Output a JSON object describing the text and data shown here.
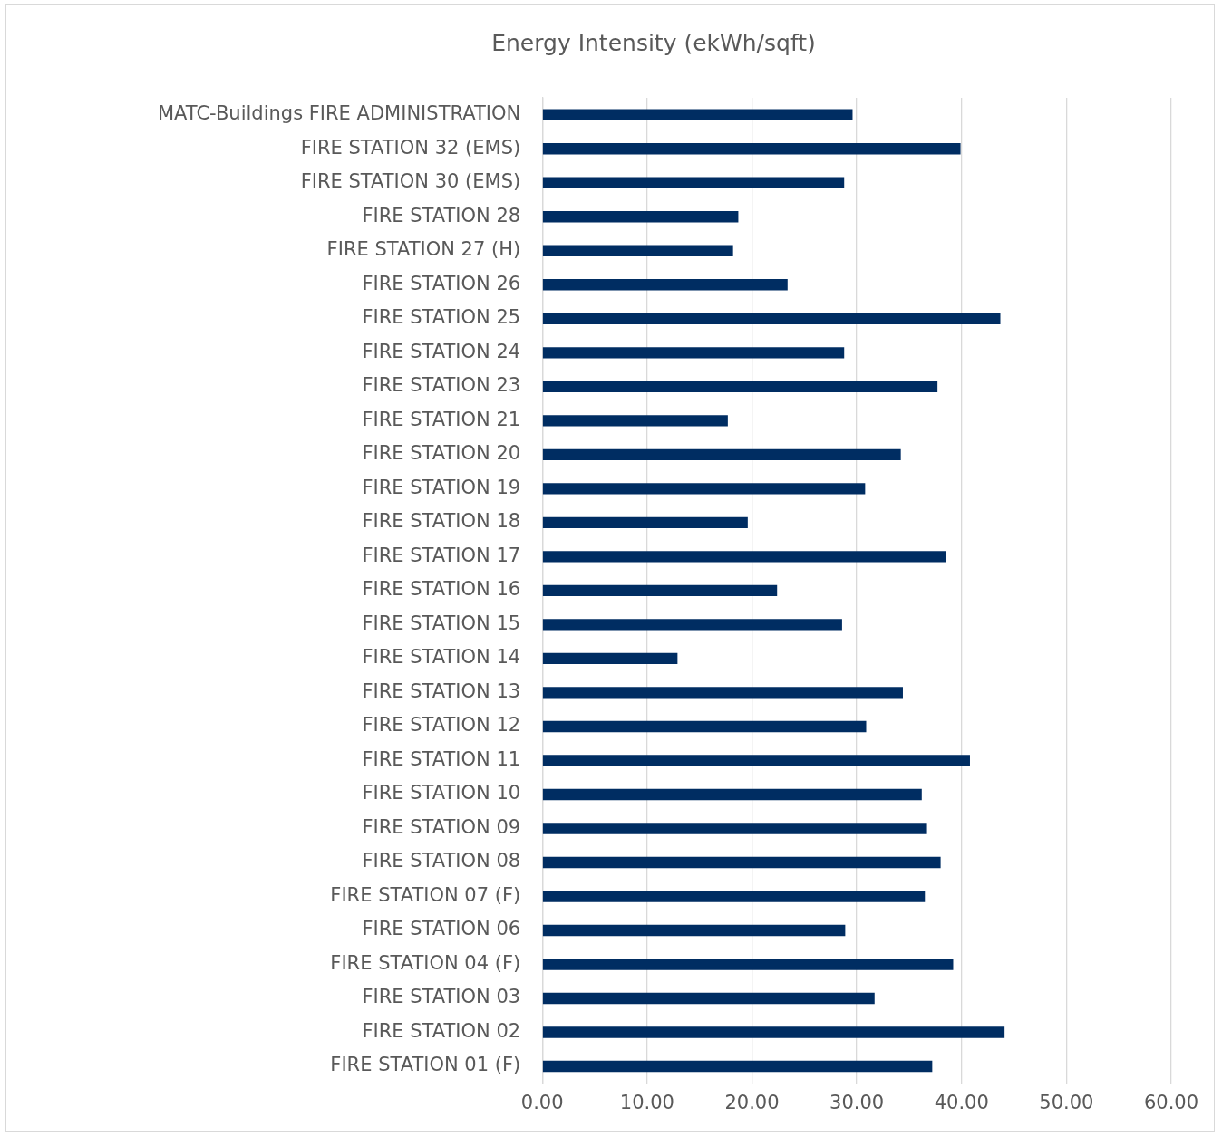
{
  "chart_data": {
    "type": "bar",
    "orientation": "horizontal",
    "title": "Energy Intensity (ekWh/sqft)",
    "categories": [
      "MATC-Buildings FIRE ADMINISTRATION",
      "FIRE STATION 32 (EMS)",
      "FIRE STATION 30 (EMS)",
      "FIRE STATION 28",
      "FIRE STATION 27 (H)",
      "FIRE STATION 26",
      "FIRE STATION 25",
      "FIRE STATION 24",
      "FIRE STATION 23",
      "FIRE STATION 21",
      "FIRE STATION 20",
      "FIRE STATION 19",
      "FIRE STATION 18",
      "FIRE STATION 17",
      "FIRE STATION 16",
      "FIRE STATION 15",
      "FIRE STATION 14",
      "FIRE STATION 13",
      "FIRE STATION 12",
      "FIRE STATION 11",
      "FIRE STATION 10",
      "FIRE STATION 09",
      "FIRE STATION 08",
      "FIRE STATION 07 (F)",
      "FIRE STATION 06",
      "FIRE STATION 04 (F)",
      "FIRE STATION 03",
      "FIRE STATION 02",
      "FIRE STATION 01 (F)"
    ],
    "values": [
      29.6,
      39.9,
      28.8,
      18.7,
      18.2,
      23.4,
      43.7,
      28.8,
      37.7,
      17.7,
      34.2,
      30.8,
      19.6,
      38.5,
      22.4,
      28.6,
      12.9,
      34.4,
      30.9,
      40.8,
      36.2,
      36.7,
      38.0,
      36.5,
      28.9,
      39.2,
      31.7,
      44.1,
      37.2
    ],
    "color": "#002d62",
    "xlim": [
      0,
      60
    ],
    "xticks": [
      {
        "value": 0,
        "label": "0.00"
      },
      {
        "value": 10,
        "label": "10.00"
      },
      {
        "value": 20,
        "label": "20.00"
      },
      {
        "value": 30,
        "label": "30.00"
      },
      {
        "value": 40,
        "label": "40.00"
      },
      {
        "value": 50,
        "label": "50.00"
      },
      {
        "value": 60,
        "label": "60.00"
      }
    ],
    "grid": "x",
    "legend": false
  }
}
